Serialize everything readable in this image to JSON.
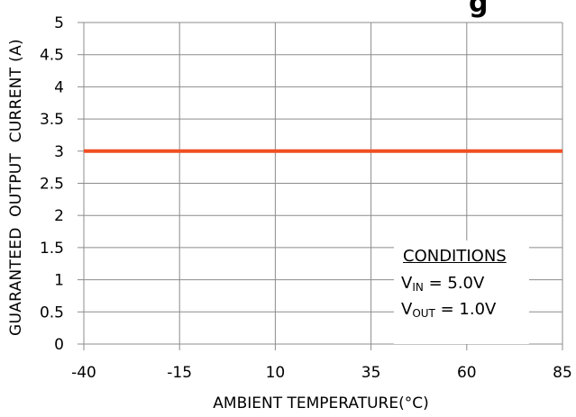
{
  "chart_data": {
    "type": "line",
    "title_fragment": "g",
    "xlabel": "AMBIENT TEMPERATURE(°C)",
    "ylabel": "GUARANTEED  OUTPUT  CURRENT (A)",
    "x_ticks": [
      "-40",
      "-15",
      "10",
      "35",
      "60",
      "85"
    ],
    "x_tick_values": [
      -40,
      -15,
      10,
      35,
      60,
      85
    ],
    "y_ticks": [
      "0",
      "0.5",
      "1",
      "1.5",
      "2",
      "2.5",
      "3",
      "3.5",
      "4",
      "4.5",
      "5"
    ],
    "y_tick_values": [
      0,
      0.5,
      1,
      1.5,
      2,
      2.5,
      3,
      3.5,
      4,
      4.5,
      5
    ],
    "xlim": [
      -40,
      85
    ],
    "ylim": [
      0,
      5
    ],
    "grid": true,
    "series": [
      {
        "x": [
          -40,
          85
        ],
        "y": [
          3,
          3
        ],
        "color": "#f04e23"
      }
    ],
    "annotation": {
      "title": "CONDITIONS",
      "vin": {
        "base": "V",
        "sub": "IN",
        "rest": " = 5.0V"
      },
      "vout": {
        "base": "V",
        "sub": "OUT",
        "rest": " = 1.0V"
      }
    }
  }
}
